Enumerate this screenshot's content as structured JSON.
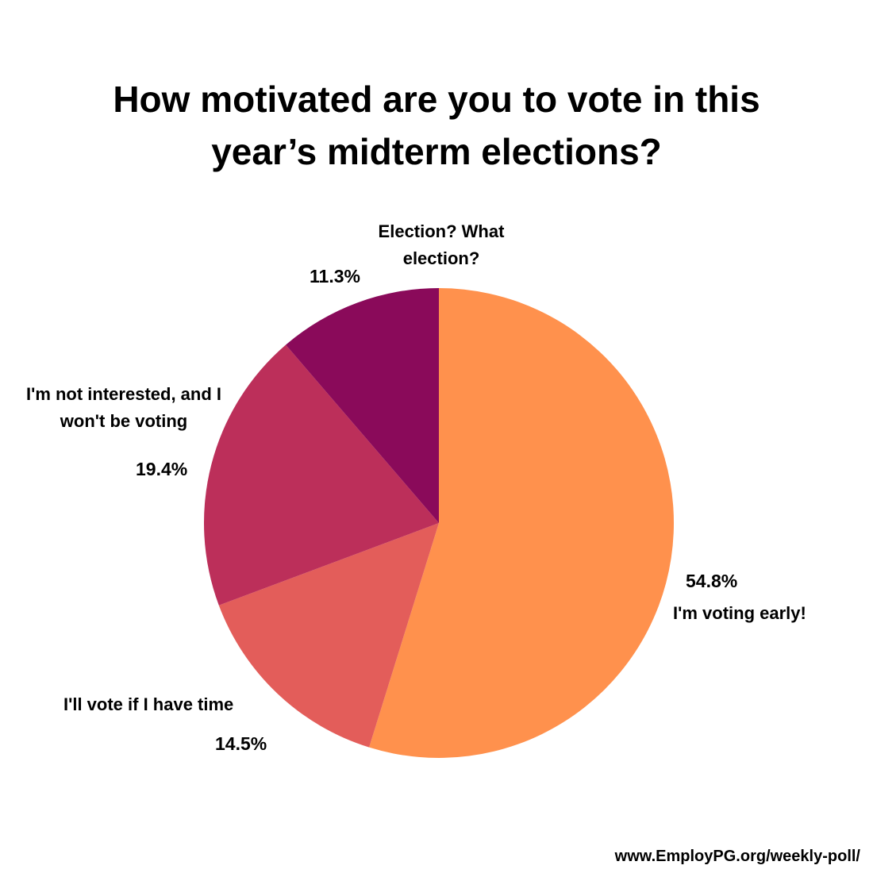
{
  "chart_data": {
    "type": "pie",
    "title_lines": [
      "How motivated are you to vote in this",
      "year’s midterm elections?"
    ],
    "slices": [
      {
        "label": "I'm voting early!",
        "label_lines": [
          "I'm voting early!"
        ],
        "value": 54.8,
        "value_text": "54.8%",
        "color": "#FF914D"
      },
      {
        "label": "I'll vote if I have time",
        "label_lines": [
          "I'll vote if I have time"
        ],
        "value": 14.5,
        "value_text": "14.5%",
        "color": "#E35D5A"
      },
      {
        "label": "I'm not interested, and I won't be voting",
        "label_lines": [
          "I'm not interested, and I",
          "won't be voting"
        ],
        "value": 19.4,
        "value_text": "19.4%",
        "color": "#BC2F5A"
      },
      {
        "label": "Election? What election?",
        "label_lines": [
          "Election? What",
          "election?"
        ],
        "value": 11.3,
        "value_text": "11.3%",
        "color": "#8A0A5A"
      }
    ],
    "start": "12 o'clock",
    "direction": "clockwise"
  },
  "footer": {
    "url": "www.EmployPG.org/weekly-poll/"
  }
}
